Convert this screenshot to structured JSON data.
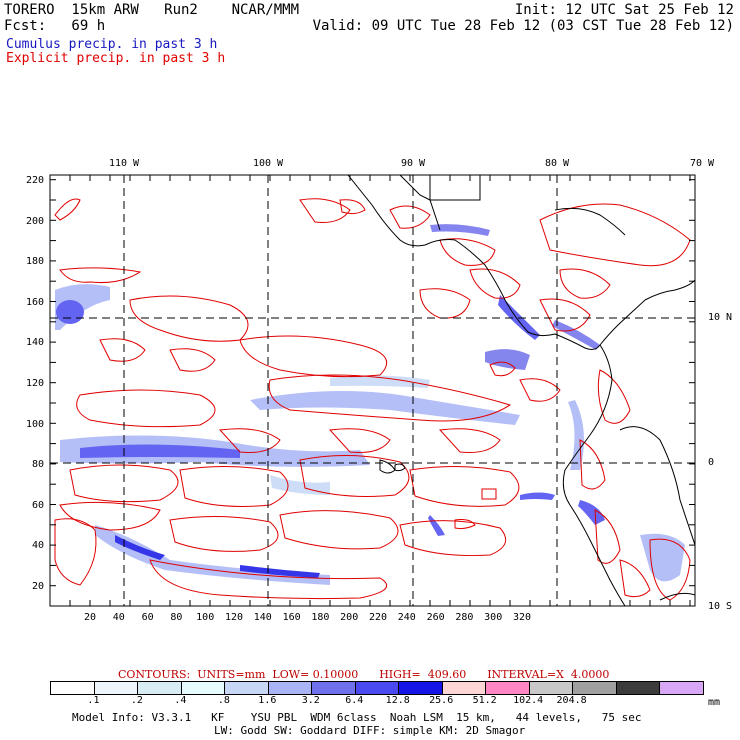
{
  "header": {
    "model_line": "TORERO  15km ARW   Run2    NCAR/MMM",
    "init_line": "Init: 12 UTC Sat 25 Feb 12",
    "fcst_line": "Fcst:   69 h",
    "valid_line": "Valid: 09 UTC Tue 28 Feb 12 (03 CST Tue 28 Feb 12)",
    "field_cumulus": "Cumulus precip. in past 3 h",
    "field_explicit": "Explicit precip. in past 3 h"
  },
  "colors": {
    "cumulus_text": "#1818c0",
    "explicit_text": "#e00000",
    "contour": "#e00000",
    "coast": "#000000"
  },
  "map": {
    "top_lon_labels": [
      "110 W",
      "100 W",
      "90 W",
      "80 W",
      "70 W"
    ],
    "right_lat_labels": [
      "10 N",
      "0",
      "10 S"
    ],
    "left_ticks": [
      "220",
      "200",
      "180",
      "160",
      "140",
      "120",
      "100",
      "80",
      "60",
      "40",
      "20"
    ],
    "bottom_ticks": [
      "20",
      "40",
      "60",
      "80",
      "100",
      "120",
      "140",
      "160",
      "180",
      "200",
      "220",
      "240",
      "260",
      "280",
      "300",
      "320"
    ]
  },
  "legend": {
    "contour_info": "CONTOURS:  UNITS=mm  LOW= 0.10000      HIGH=  409.60      INTERVAL=X  4.0000",
    "colors": [
      "#ffffff",
      "#eef6fb",
      "#d8ecf4",
      "#e6fbfb",
      "#c6d8f6",
      "#a8b4f6",
      "#7070ec",
      "#4a4af0",
      "#1414e6",
      "#ffd6d6",
      "#ff88c4",
      "#c8c8c8",
      "#a0a0a0",
      "#3c3c3c",
      "#d8a8f6"
    ],
    "values": [
      ".1",
      ".2",
      ".4",
      ".8",
      "1.6",
      "3.2",
      "6.4",
      "12.8",
      "25.6",
      "51.2",
      "102.4",
      "204.8"
    ],
    "unit": "mm"
  },
  "footer": {
    "line1": "Model Info: V3.3.1   KF    YSU PBL  WDM 6class  Noah LSM  15 km,   44 levels,   75 sec",
    "line2": "LW: Godd SW: Goddard DIFF: simple KM: 2D Smagor"
  }
}
